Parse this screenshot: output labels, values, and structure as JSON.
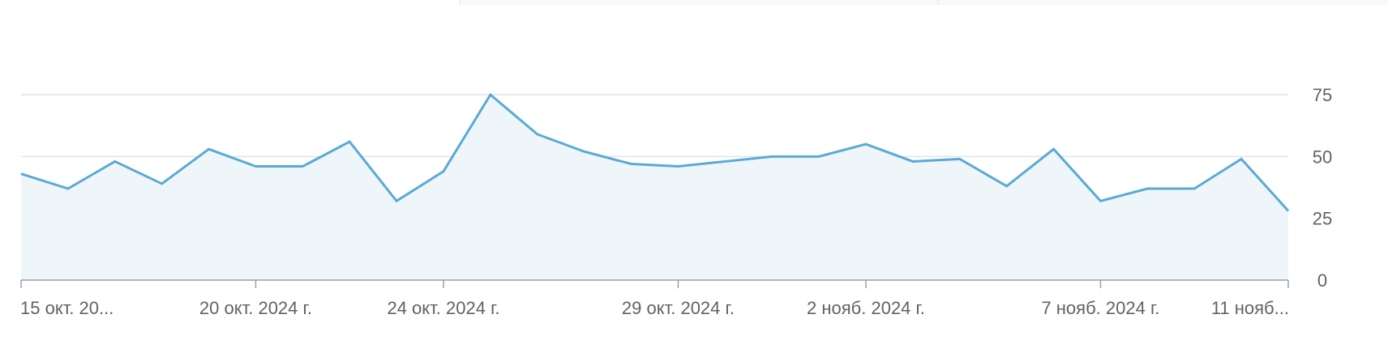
{
  "chart_data": {
    "type": "area",
    "x": [
      "2024-10-15",
      "2024-10-16",
      "2024-10-17",
      "2024-10-18",
      "2024-10-19",
      "2024-10-20",
      "2024-10-21",
      "2024-10-22",
      "2024-10-23",
      "2024-10-24",
      "2024-10-25",
      "2024-10-26",
      "2024-10-27",
      "2024-10-28",
      "2024-10-29",
      "2024-10-30",
      "2024-10-31",
      "2024-11-01",
      "2024-11-02",
      "2024-11-03",
      "2024-11-04",
      "2024-11-05",
      "2024-11-06",
      "2024-11-07",
      "2024-11-08",
      "2024-11-09",
      "2024-11-10",
      "2024-11-11"
    ],
    "series": [
      {
        "values": [
          43,
          37,
          48,
          39,
          53,
          46,
          46,
          56,
          32,
          44,
          75,
          59,
          52,
          47,
          46,
          48,
          50,
          50,
          55,
          48,
          49,
          38,
          53,
          32,
          37,
          37,
          49,
          28
        ],
        "color": "#5aaad5",
        "fill_color": "#eef6fa"
      }
    ],
    "ylim": [
      0,
      75
    ],
    "yticks": [
      0,
      25,
      50,
      75
    ],
    "y_axis_position": "right",
    "grid": true,
    "xtick_labels": [
      {
        "index": 0,
        "label": "15 окт. 20..."
      },
      {
        "index": 5,
        "label": "20 окт. 2024 г."
      },
      {
        "index": 9,
        "label": "24 окт. 2024 г."
      },
      {
        "index": 14,
        "label": "29 окт. 2024 г."
      },
      {
        "index": 18,
        "label": "2 нояб. 2024 г."
      },
      {
        "index": 23,
        "label": "7 нояб. 2024 г."
      },
      {
        "index": 27,
        "label": "11 нояб..."
      }
    ],
    "title": "",
    "xlabel": "",
    "ylabel": ""
  }
}
